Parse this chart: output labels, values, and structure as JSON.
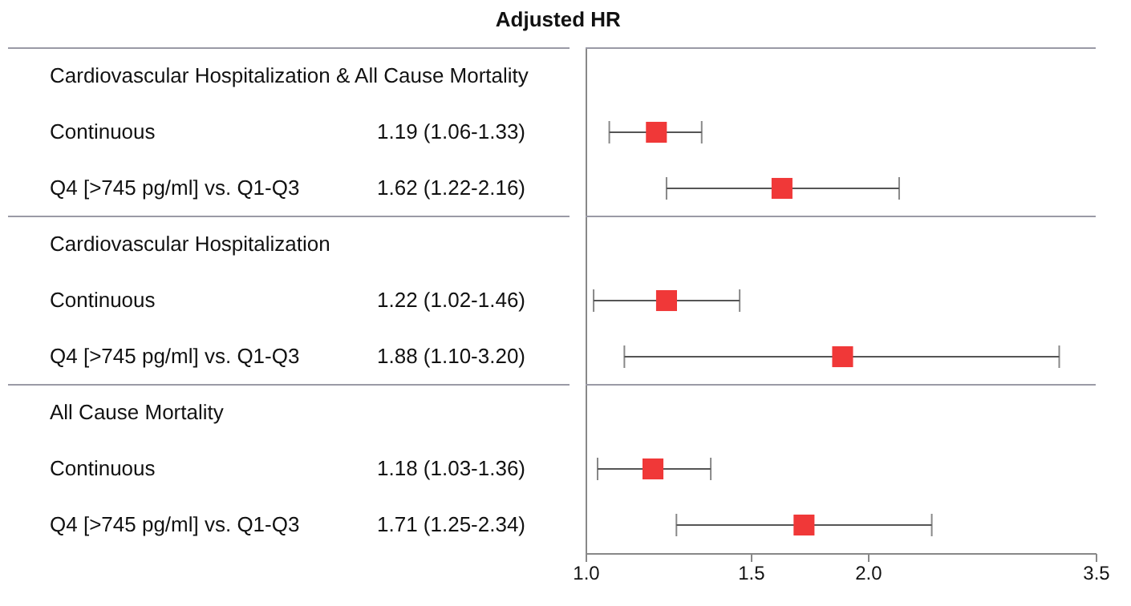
{
  "chart_data": {
    "type": "scatter",
    "title": "Adjusted HR",
    "orientation": "horizontal",
    "categories": [
      "Cardiovascular Hospitalization & All Cause Mortality",
      "Continuous",
      "Q4 [>745 pg/ml] vs. Q1-Q3",
      "Cardiovascular Hospitalization",
      "Continuous",
      "Q4 [>745 pg/ml] vs. Q1-Q3",
      "All Cause Mortality",
      "Continuous",
      "Q4 [>745 pg/ml] vs. Q1-Q3"
    ],
    "values": [
      null,
      1.19,
      1.62,
      null,
      1.22,
      1.88,
      null,
      1.18,
      1.71
    ],
    "errors": [
      null,
      [
        1.06,
        1.33
      ],
      [
        1.22,
        2.16
      ],
      null,
      [
        1.02,
        1.46
      ],
      [
        1.1,
        3.2
      ],
      null,
      [
        1.03,
        1.36
      ],
      [
        1.25,
        2.34
      ]
    ],
    "value_labels": [
      null,
      "1.19 (1.06-1.33)",
      "1.62 (1.22-2.16)",
      null,
      "1.22 (1.02-1.46)",
      "1.88 (1.10-3.20)",
      null,
      "1.18 (1.03-1.36)",
      "1.71 (1.25-2.34)"
    ],
    "color": "#f03838",
    "marker": "square",
    "log": "x",
    "grid": false,
    "xlim": [
      1,
      3.5
    ],
    "xticks": [
      {
        "value": 1,
        "label": "1.0"
      },
      1.5,
      {
        "value": 2,
        "label": "2.0"
      },
      3.5
    ]
  }
}
